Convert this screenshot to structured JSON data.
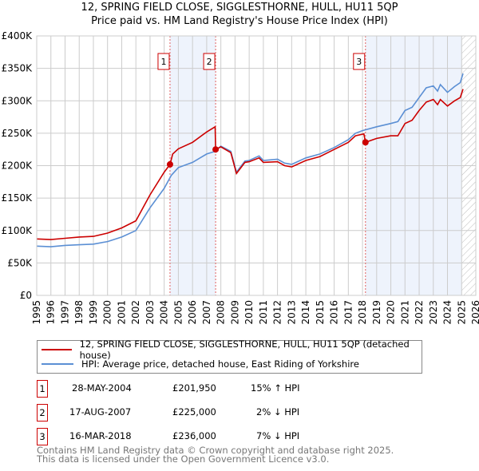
{
  "title": "12, SPRING FIELD CLOSE, SIGGLESTHORNE, HULL, HU11 5QP",
  "subtitle": "Price paid vs. HM Land Registry's House Price Index (HPI)",
  "chart_data": {
    "type": "line",
    "title": "12, SPRING FIELD CLOSE, SIGGLESTHORNE, HULL, HU11 5QP",
    "subtitle": "Price paid vs. HM Land Registry's House Price Index (HPI)",
    "xlim": [
      1995,
      2026
    ],
    "ylim": [
      0,
      400000
    ],
    "xticks": [
      "1995",
      "1996",
      "1997",
      "1998",
      "1999",
      "2000",
      "2001",
      "2002",
      "2003",
      "2004",
      "2005",
      "2006",
      "2007",
      "2008",
      "2009",
      "2010",
      "2011",
      "2012",
      "2013",
      "2014",
      "2015",
      "2016",
      "2017",
      "2018",
      "2019",
      "2020",
      "2021",
      "2022",
      "2023",
      "2024",
      "2025",
      "2026"
    ],
    "yticks": [
      "£0",
      "£50K",
      "£100K",
      "£150K",
      "£200K",
      "£250K",
      "£300K",
      "£350K",
      "£400K"
    ],
    "grid": true,
    "shaded_ranges": [
      [
        2004.41,
        2007.63
      ],
      [
        2018.21,
        2025.0
      ]
    ],
    "future_hatch_from": 2025.0,
    "series": [
      {
        "name": "12, SPRING FIELD CLOSE, SIGGLESTHORNE, HULL, HU11 5QP (detached house)",
        "color": "#cc0000",
        "x": [
          1995,
          1996,
          1997,
          1998,
          1999,
          2000,
          2001,
          2002,
          2003,
          2004,
          2004.41,
          2004.6,
          2005,
          2006,
          2007,
          2007.6,
          2007.63,
          2008,
          2008.7,
          2009.1,
          2009.7,
          2010,
          2010.7,
          2011,
          2012,
          2012.5,
          2013,
          2014,
          2015,
          2016,
          2017,
          2017.5,
          2018.1,
          2018.21,
          2019,
          2020,
          2020.5,
          2021,
          2021.5,
          2022,
          2022.5,
          2023,
          2023.3,
          2023.5,
          2024,
          2024.5,
          2024.9,
          2025.1
        ],
        "y": [
          87000,
          86000,
          88000,
          90000,
          91000,
          96000,
          104000,
          115000,
          155000,
          190000,
          201950,
          218000,
          226000,
          236000,
          252000,
          260000,
          225000,
          229000,
          220000,
          188000,
          205000,
          206000,
          212000,
          205000,
          206000,
          200000,
          198000,
          208000,
          214000,
          225000,
          236000,
          246000,
          249000,
          236000,
          242000,
          246000,
          246000,
          265000,
          270000,
          285000,
          298000,
          302000,
          294000,
          302000,
          292000,
          300000,
          305000,
          318000
        ]
      },
      {
        "name": "HPI: Average price, detached house, East Riding of Yorkshire",
        "color": "#5b8fd4",
        "x": [
          1995,
          1996,
          1997,
          1998,
          1999,
          2000,
          2001,
          2002,
          2003,
          2004,
          2004.5,
          2005,
          2006,
          2007,
          2007.6,
          2008,
          2008.7,
          2009.1,
          2009.7,
          2010,
          2010.7,
          2011,
          2012,
          2012.5,
          2013,
          2014,
          2015,
          2016,
          2017,
          2017.5,
          2018,
          2019,
          2020,
          2020.5,
          2021,
          2021.5,
          2022,
          2022.5,
          2023,
          2023.3,
          2023.5,
          2024,
          2024.5,
          2024.9,
          2025.1
        ],
        "y": [
          76000,
          75000,
          77000,
          78000,
          79000,
          83000,
          90000,
          100000,
          135000,
          165000,
          185000,
          197000,
          205000,
          218000,
          222000,
          230000,
          222000,
          190000,
          207000,
          208000,
          215000,
          208000,
          210000,
          204000,
          202000,
          212000,
          218000,
          228000,
          240000,
          250000,
          254000,
          260000,
          265000,
          268000,
          285000,
          290000,
          305000,
          320000,
          323000,
          315000,
          325000,
          313000,
          322000,
          328000,
          342000
        ]
      }
    ],
    "annotations": [
      {
        "label": "1",
        "x": 2004.41,
        "y": 201950
      },
      {
        "label": "2",
        "x": 2007.63,
        "y": 225000
      },
      {
        "label": "3",
        "x": 2018.21,
        "y": 236000
      }
    ]
  },
  "legend": {
    "property": "12, SPRING FIELD CLOSE, SIGGLESTHORNE, HULL, HU11 5QP (detached house)",
    "hpi": "HPI: Average price, detached house, East Riding of Yorkshire"
  },
  "transactions": [
    {
      "n": "1",
      "date": "28-MAY-2004",
      "price": "£201,950",
      "delta": "15% ↑ HPI"
    },
    {
      "n": "2",
      "date": "17-AUG-2007",
      "price": "£225,000",
      "delta": "2% ↓ HPI"
    },
    {
      "n": "3",
      "date": "16-MAR-2018",
      "price": "£236,000",
      "delta": "7% ↓ HPI"
    }
  ],
  "footer": {
    "line1": "Contains HM Land Registry data © Crown copyright and database right 2025.",
    "line2": "This data is licensed under the Open Government Licence v3.0."
  }
}
